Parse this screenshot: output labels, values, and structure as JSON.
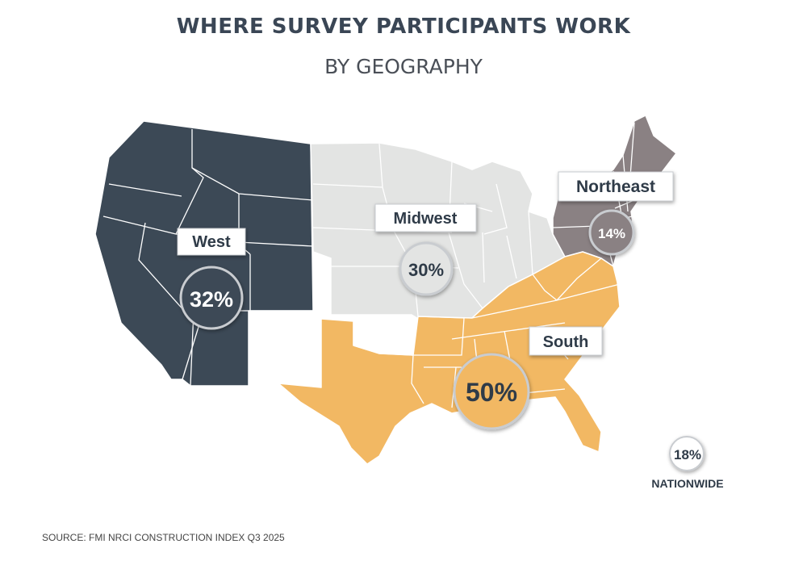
{
  "title": "WHERE SURVEY PARTICIPANTS WORK",
  "subtitle": "BY GEOGRAPHY",
  "source": "SOURCE: FMI NRCI CONSTRUCTION INDEX Q3 2025",
  "colors": {
    "west": "#3c4956",
    "midwest": "#e3e4e3",
    "northeast": "#8a8183",
    "south": "#f2b863",
    "border": "#ffffff"
  },
  "regions": [
    {
      "name": "West",
      "value": "32%"
    },
    {
      "name": "Midwest",
      "value": "30%"
    },
    {
      "name": "Northeast",
      "value": "14%"
    },
    {
      "name": "South",
      "value": "50%"
    }
  ],
  "nationwide": {
    "value": "18%",
    "label": "NATIONWIDE"
  }
}
